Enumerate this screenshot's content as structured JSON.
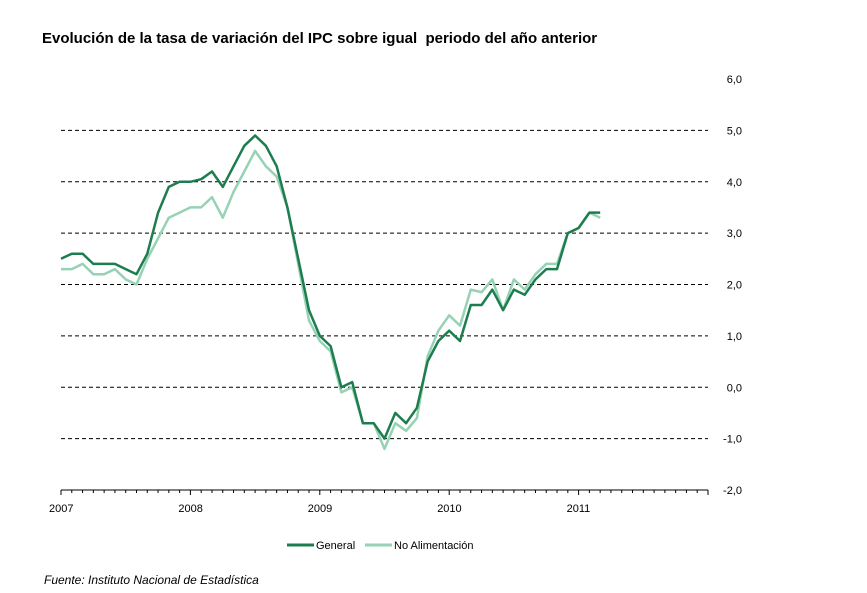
{
  "title": "Evolución de la tasa de variación del IPC sobre igual  periodo del año anterior",
  "source": "Fuente: Instituto Nacional de Estadística",
  "colors": {
    "general": "#1e7d4f",
    "no_alimentacion": "#96d2b4"
  },
  "chart_data": {
    "type": "line",
    "ylim": [
      -2.0,
      6.0
    ],
    "y_ticks": [
      "6,0",
      "5,0",
      "4,0",
      "3,0",
      "2,0",
      "1,0",
      "0,0",
      "-1,0",
      "-2,0"
    ],
    "x_tick_labels": [
      "2007",
      "2008",
      "2009",
      "2010",
      "2011"
    ],
    "x_range": [
      "2007-01",
      "2011-12"
    ],
    "grid": "dashed horizontal",
    "legend_placement": "bottom-center",
    "x": [
      "2007-01",
      "2007-02",
      "2007-03",
      "2007-04",
      "2007-05",
      "2007-06",
      "2007-07",
      "2007-08",
      "2007-09",
      "2007-10",
      "2007-11",
      "2007-12",
      "2008-01",
      "2008-02",
      "2008-03",
      "2008-04",
      "2008-05",
      "2008-06",
      "2008-07",
      "2008-08",
      "2008-09",
      "2008-10",
      "2008-11",
      "2008-12",
      "2009-01",
      "2009-02",
      "2009-03",
      "2009-04",
      "2009-05",
      "2009-06",
      "2009-07",
      "2009-08",
      "2009-09",
      "2009-10",
      "2009-11",
      "2009-12",
      "2010-01",
      "2010-02",
      "2010-03",
      "2010-04",
      "2010-05",
      "2010-06",
      "2010-07",
      "2010-08",
      "2010-09",
      "2010-10",
      "2010-11",
      "2010-12",
      "2011-01",
      "2011-02",
      "2011-03"
    ],
    "series": [
      {
        "name": "General",
        "values": [
          2.5,
          2.6,
          2.6,
          2.4,
          2.4,
          2.4,
          2.3,
          2.2,
          2.6,
          3.4,
          3.9,
          4.0,
          4.0,
          4.05,
          4.2,
          3.9,
          4.3,
          4.7,
          4.9,
          4.7,
          4.3,
          3.5,
          2.5,
          1.5,
          1.0,
          0.8,
          0.0,
          0.1,
          -0.7,
          -0.7,
          -1.0,
          -0.5,
          -0.7,
          -0.4,
          0.5,
          0.9,
          1.1,
          0.9,
          1.6,
          1.6,
          1.9,
          1.5,
          1.9,
          1.8,
          2.1,
          2.3,
          2.3,
          3.0,
          3.1,
          3.4,
          3.4
        ]
      },
      {
        "name": "No Alimentación",
        "values": [
          2.3,
          2.3,
          2.4,
          2.2,
          2.2,
          2.3,
          2.1,
          2.0,
          2.5,
          2.9,
          3.3,
          3.4,
          3.5,
          3.5,
          3.7,
          3.3,
          3.8,
          4.2,
          4.6,
          4.3,
          4.1,
          3.5,
          2.4,
          1.3,
          0.9,
          0.7,
          -0.1,
          0.0,
          -0.7,
          -0.7,
          -1.2,
          -0.7,
          -0.85,
          -0.6,
          0.6,
          1.1,
          1.4,
          1.2,
          1.9,
          1.85,
          2.1,
          1.5,
          2.1,
          1.9,
          2.2,
          2.4,
          2.4,
          3.0,
          3.1,
          3.4,
          3.3
        ]
      }
    ]
  }
}
